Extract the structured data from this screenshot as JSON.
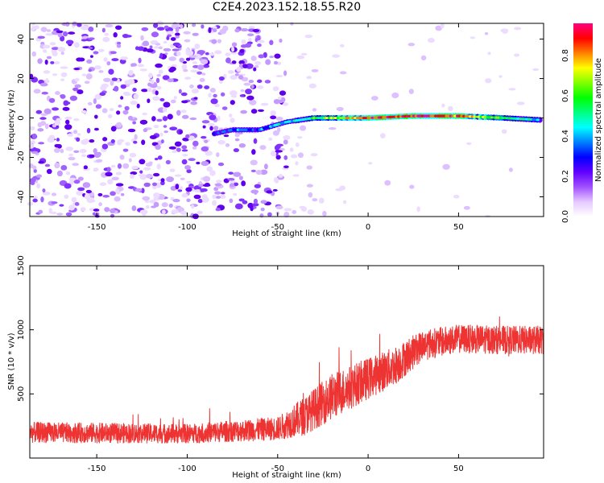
{
  "title": "C2E4.2023.152.18.55.R20",
  "chart_data": [
    {
      "type": "heatmap",
      "title": "C2E4.2023.152.18.55.R20",
      "xlabel": "Height of straight line (km)",
      "ylabel": "Frequency (Hz)",
      "xlim": [
        -187,
        97
      ],
      "ylim": [
        -50,
        48
      ],
      "xticks": [
        -150,
        -100,
        -50,
        0,
        50
      ],
      "yticks": [
        -40,
        -20,
        0,
        20,
        40
      ],
      "colorbar": {
        "label": "Normalized spectral amplitude",
        "range": [
          0.0,
          0.96
        ],
        "ticks": [
          "0.0",
          "0.2",
          "0.4",
          "0.6",
          "0.8"
        ],
        "colors": [
          "#ffffff",
          "#e6c8ff",
          "#a050ff",
          "#6000ff",
          "#0000ff",
          "#0080ff",
          "#00ffff",
          "#00ff80",
          "#00ff00",
          "#80ff00",
          "#ffff00",
          "#ff8000",
          "#ff0000",
          "#ff0080"
        ]
      },
      "band_points": [
        {
          "x": -85,
          "freq": -8,
          "amplitude": 0.3
        },
        {
          "x": -75,
          "freq": -6,
          "amplitude": 0.3
        },
        {
          "x": -60,
          "freq": -6,
          "amplitude": 0.35
        },
        {
          "x": -45,
          "freq": -2,
          "amplitude": 0.4
        },
        {
          "x": -30,
          "freq": 0,
          "amplitude": 0.55
        },
        {
          "x": -10,
          "freq": 0,
          "amplitude": 0.75
        },
        {
          "x": 0,
          "freq": 0,
          "amplitude": 0.85
        },
        {
          "x": 25,
          "freq": 1,
          "amplitude": 0.92
        },
        {
          "x": 50,
          "freq": 1,
          "amplitude": 0.85
        },
        {
          "x": 75,
          "freq": 0,
          "amplitude": 0.55
        },
        {
          "x": 95,
          "freq": -1,
          "amplitude": 0.45
        }
      ]
    },
    {
      "type": "line",
      "xlabel": "Height of straight line (km)",
      "ylabel": "SNR (10 * v/v)",
      "xlim": [
        -187,
        97
      ],
      "ylim": [
        0,
        1500
      ],
      "xticks": [
        -150,
        -100,
        -50,
        0,
        50
      ],
      "yticks": [
        500,
        1000,
        1500
      ],
      "color": "#ee3333",
      "trend": [
        {
          "x": -187,
          "mean": 200,
          "spread": 80
        },
        {
          "x": -100,
          "mean": 190,
          "spread": 75
        },
        {
          "x": -50,
          "mean": 230,
          "spread": 90
        },
        {
          "x": -35,
          "mean": 330,
          "spread": 150
        },
        {
          "x": -20,
          "mean": 480,
          "spread": 180
        },
        {
          "x": 0,
          "mean": 620,
          "spread": 160
        },
        {
          "x": 15,
          "mean": 720,
          "spread": 150
        },
        {
          "x": 30,
          "mean": 880,
          "spread": 120
        },
        {
          "x": 50,
          "mean": 930,
          "spread": 110
        },
        {
          "x": 75,
          "mean": 920,
          "spread": 110
        },
        {
          "x": 97,
          "mean": 920,
          "spread": 110
        }
      ]
    }
  ]
}
